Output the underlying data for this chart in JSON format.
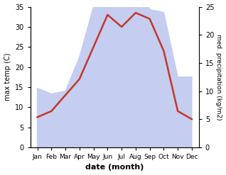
{
  "months": [
    "Jan",
    "Feb",
    "Mar",
    "Apr",
    "May",
    "Jun",
    "Jul",
    "Aug",
    "Sep",
    "Oct",
    "Nov",
    "Dec"
  ],
  "temperature": [
    7.5,
    9.0,
    13.0,
    17.0,
    25.0,
    33.0,
    30.0,
    33.5,
    32.0,
    24.0,
    9.0,
    7.0
  ],
  "precipitation_raw": [
    10.5,
    9.5,
    10.0,
    16.0,
    25.0,
    33.0,
    31.0,
    32.5,
    24.5,
    24.0,
    12.5,
    12.5
  ],
  "temp_color": "#c0392b",
  "precip_fill_color": "#c5cdf0",
  "temp_ylim": [
    0,
    35
  ],
  "precip_ylim": [
    0,
    25
  ],
  "left_yticks": [
    0,
    5,
    10,
    15,
    20,
    25,
    30,
    35
  ],
  "right_yticks": [
    0,
    5,
    10,
    15,
    20,
    25
  ],
  "ylabel_left": "max temp (C)",
  "ylabel_right": "med. precipitation (kg/m2)",
  "xlabel": "date (month)",
  "bg_color": "#ffffff"
}
